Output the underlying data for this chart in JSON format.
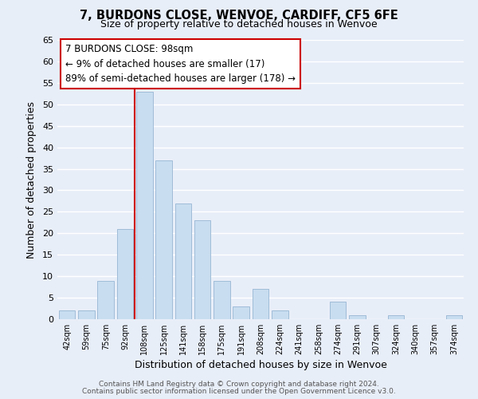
{
  "title": "7, BURDONS CLOSE, WENVOE, CARDIFF, CF5 6FE",
  "subtitle": "Size of property relative to detached houses in Wenvoe",
  "xlabel": "Distribution of detached houses by size in Wenvoe",
  "ylabel": "Number of detached properties",
  "bar_color": "#c8ddf0",
  "bar_edge_color": "#a0bcd8",
  "background_color": "#e8eef8",
  "grid_color": "#ffffff",
  "categories": [
    "42sqm",
    "59sqm",
    "75sqm",
    "92sqm",
    "108sqm",
    "125sqm",
    "141sqm",
    "158sqm",
    "175sqm",
    "191sqm",
    "208sqm",
    "224sqm",
    "241sqm",
    "258sqm",
    "274sqm",
    "291sqm",
    "307sqm",
    "324sqm",
    "340sqm",
    "357sqm",
    "374sqm"
  ],
  "values": [
    2,
    2,
    9,
    21,
    53,
    37,
    27,
    23,
    9,
    3,
    7,
    2,
    0,
    0,
    4,
    1,
    0,
    1,
    0,
    0,
    1
  ],
  "ylim": [
    0,
    65
  ],
  "yticks": [
    0,
    5,
    10,
    15,
    20,
    25,
    30,
    35,
    40,
    45,
    50,
    55,
    60,
    65
  ],
  "vline_color": "#cc0000",
  "vline_index": 3.5,
  "annotation_title": "7 BURDONS CLOSE: 98sqm",
  "annotation_line1": "← 9% of detached houses are smaller (17)",
  "annotation_line2": "89% of semi-detached houses are larger (178) →",
  "annotation_box_facecolor": "#ffffff",
  "annotation_box_edgecolor": "#cc0000",
  "footer1": "Contains HM Land Registry data © Crown copyright and database right 2024.",
  "footer2": "Contains public sector information licensed under the Open Government Licence v3.0."
}
